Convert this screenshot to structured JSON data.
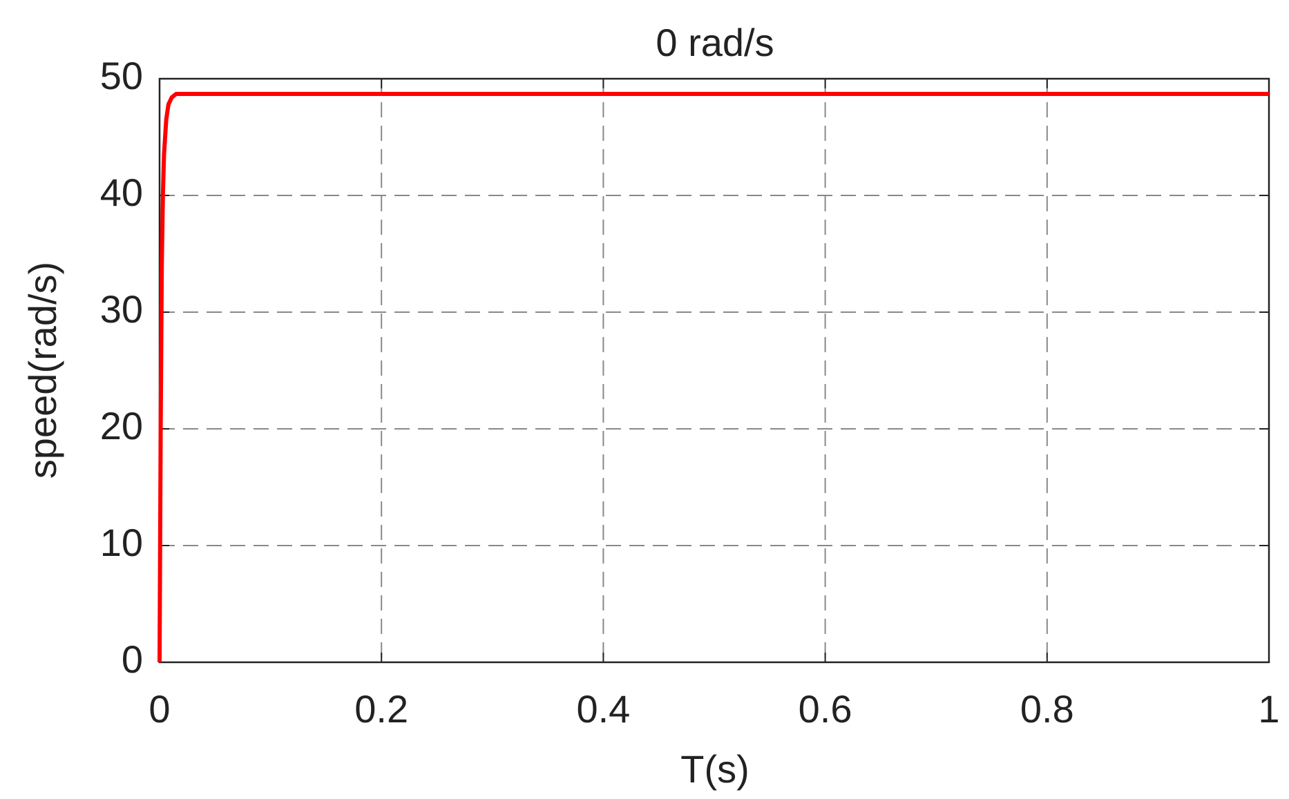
{
  "chart_data": {
    "type": "line",
    "title": "0 rad/s",
    "x_label": "T(s)",
    "y_label": "speed(rad/s)",
    "x": [
      0,
      0.001,
      0.002,
      0.003,
      0.004,
      0.006,
      0.008,
      0.011,
      0.015,
      0.02,
      0.1,
      0.5,
      1
    ],
    "series": [
      {
        "name": "speed",
        "color": "#ff0000",
        "values": [
          0,
          20,
          34,
          40,
          43.5,
          46.5,
          47.8,
          48.4,
          48.7,
          48.7,
          48.7,
          48.7,
          48.7
        ]
      }
    ],
    "xlim": [
      0,
      1
    ],
    "xticks": [
      0,
      0.2,
      0.4,
      0.6,
      0.8,
      1
    ],
    "ylim": [
      0,
      50
    ],
    "yticks": [
      0,
      10,
      20,
      30,
      40,
      50
    ],
    "grid": true
  }
}
